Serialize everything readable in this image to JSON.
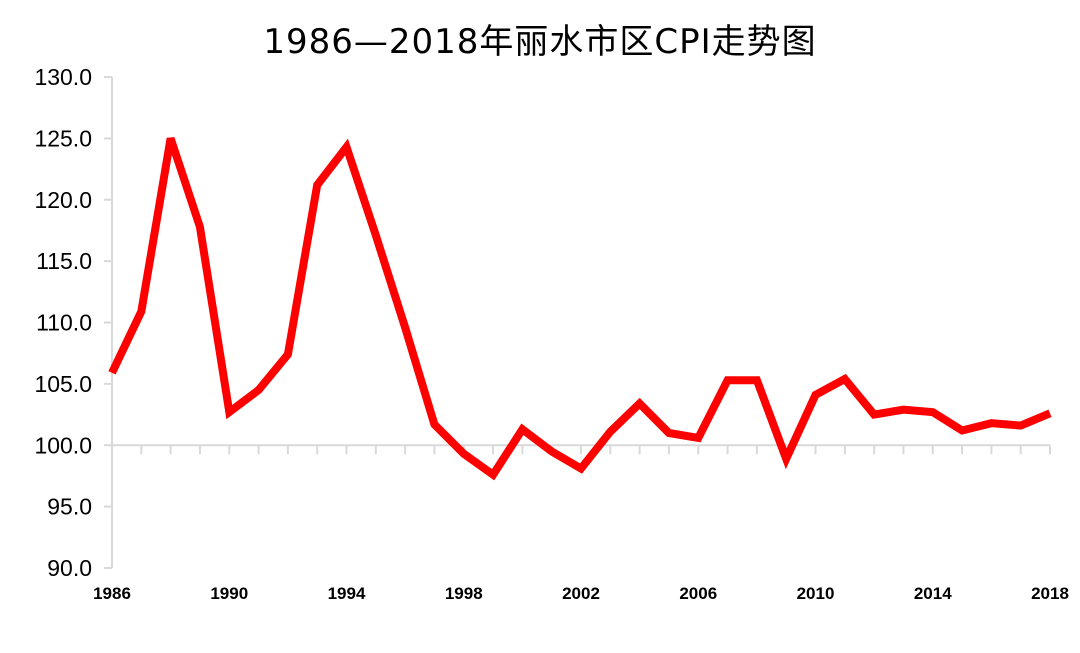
{
  "chart_data": {
    "type": "line",
    "title": "1986—2018年丽水市区CPI走势图",
    "xlabel": "",
    "ylabel": "",
    "ylim": [
      90,
      130
    ],
    "yticks": [
      "90.0",
      "95.0",
      "100.0",
      "105.0",
      "110.0",
      "115.0",
      "120.0",
      "125.0",
      "130.0"
    ],
    "xticks": [
      "1986",
      "1990",
      "1994",
      "1998",
      "2002",
      "2006",
      "2010",
      "2014",
      "2018"
    ],
    "grid": false,
    "baseline": 100,
    "colors": {
      "line": "#ff0000",
      "axis": "#d9d9d9"
    },
    "series": [
      {
        "x": [
          1986,
          1987,
          1988,
          1989,
          1990,
          1991,
          1992,
          1993,
          1994,
          1995,
          1996,
          1997,
          1998,
          1999,
          2000,
          2001,
          2002,
          2003,
          2004,
          2005,
          2006,
          2007,
          2008,
          2009,
          2010,
          2011,
          2012,
          2013,
          2014,
          2015,
          2016,
          2017,
          2018
        ],
        "values": [
          105.9,
          110.9,
          125.0,
          117.8,
          102.7,
          104.5,
          107.4,
          121.2,
          124.3,
          117.1,
          109.6,
          101.7,
          99.3,
          97.6,
          101.3,
          99.5,
          98.1,
          101.1,
          103.4,
          101.0,
          100.6,
          105.3,
          105.3,
          98.9,
          104.1,
          105.4,
          102.5,
          102.9,
          102.7,
          101.2,
          101.8,
          101.6,
          102.6
        ]
      }
    ]
  }
}
